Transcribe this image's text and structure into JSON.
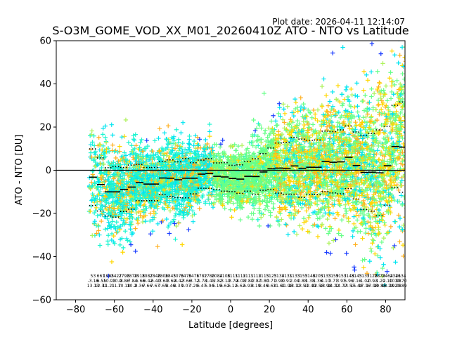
{
  "chart_data": {
    "type": "scatter",
    "title": "S-O3M_GOME_VOD_XX_M01_20260410Z ATO - NTO vs Latitude",
    "plot_date": "Plot date: 2026-04-11 12:14:07",
    "xlabel": "Latitude [degrees]",
    "ylabel": "ATO - NTO [DU]",
    "xlim": [
      -90,
      90
    ],
    "ylim": [
      -60,
      60
    ],
    "xticks": [
      -80,
      -60,
      -40,
      -20,
      0,
      20,
      40,
      60,
      80
    ],
    "yticks": [
      -60,
      -40,
      -20,
      0,
      20,
      40,
      60
    ],
    "xtick_labels": [
      "−80",
      "−60",
      "−40",
      "−20",
      "0",
      "20",
      "40",
      "60",
      "80"
    ],
    "ytick_labels": [
      "−60",
      "−40",
      "−20",
      "0",
      "20",
      "40",
      "60"
    ],
    "grid": false,
    "zero_line": 0,
    "colors": {
      "cyan": "#00e5f0",
      "aqua": "#1cf5d0",
      "green": "#66ff88",
      "lime": "#aef25c",
      "yellow": "#ffd700",
      "orange": "#ffb020",
      "blue": "#1a3cff"
    },
    "bins": [
      {
        "lat": -71,
        "mean": -3.2,
        "sd": 13.1,
        "n": "53",
        "mean_label": "-3.16",
        "sd_label": "13.13"
      },
      {
        "lat": -67,
        "mean": -6.6,
        "sd": 12.3,
        "n": "661",
        "mean_label": "-6.55",
        "sd_label": "12.31"
      },
      {
        "lat": -63,
        "mean": -10.0,
        "sd": 11.2,
        "n": "1985",
        "mean_label": "-10.03",
        "sd_label": "11.21"
      },
      {
        "lat": -59,
        "mean": -10.0,
        "sd": 11.7,
        "n": "2427",
        "mean_label": "-10.0",
        "sd_label": "11.7"
      },
      {
        "lat": -55,
        "mean": -8.9,
        "sd": 10.2,
        "n": "2795",
        "mean_label": "-8.86",
        "sd_label": "10.18"
      },
      {
        "lat": -51,
        "mean": -7.8,
        "sd": 10.2,
        "n": "2878",
        "mean_label": "-7.84",
        "sd_label": "10.2"
      },
      {
        "lat": -47,
        "mean": -5.7,
        "sd": 8.4,
        "n": "2918",
        "mean_label": "-5.66",
        "sd_label": "8.36"
      },
      {
        "lat": -43,
        "mean": -6.4,
        "sd": 7.7,
        "n": "3087",
        "mean_label": "-6.42",
        "sd_label": "7.66"
      },
      {
        "lat": -39,
        "mean": -6.4,
        "sd": 7.7,
        "n": "2848",
        "mean_label": "-6.40",
        "sd_label": "7.67"
      },
      {
        "lat": -35,
        "mean": -3.6,
        "sd": 7.7,
        "n": "2806",
        "mean_label": "-3.60",
        "sd_label": "7.65"
      },
      {
        "lat": -31,
        "mean": -3.7,
        "sd": 8.5,
        "n": "2845",
        "mean_label": "-3.69",
        "sd_label": "8.46"
      },
      {
        "lat": -27,
        "mean": -4.4,
        "sd": 8.3,
        "n": "3076",
        "mean_label": "-4.42",
        "sd_label": "8.33"
      },
      {
        "lat": -23,
        "mean": -3.7,
        "sd": 9.1,
        "n": "3476",
        "mean_label": "-3.66",
        "sd_label": "9.07"
      },
      {
        "lat": -19,
        "mean": -3.7,
        "sd": 7.2,
        "n": "3476",
        "mean_label": "-3.72",
        "sd_label": "7.20"
      },
      {
        "lat": -15,
        "mean": -1.8,
        "sd": 6.5,
        "n": "1782",
        "mean_label": "-1.78",
        "sd_label": "6.47"
      },
      {
        "lat": -11,
        "mean": -1.5,
        "sd": 6.9,
        "n": "1780",
        "mean_label": "-1.45",
        "sd_label": "6.94"
      },
      {
        "lat": -7,
        "mean": -2.8,
        "sd": 6.2,
        "n": "2084",
        "mean_label": "-2.82",
        "sd_label": "6.19"
      },
      {
        "lat": -3,
        "mean": -3.1,
        "sd": 6.6,
        "n": "2108",
        "mean_label": "-3.10",
        "sd_label": "6.62"
      },
      {
        "lat": 1,
        "mean": -3.8,
        "sd": 6.1,
        "n": "3111",
        "mean_label": "-3.79",
        "sd_label": "6.12"
      },
      {
        "lat": 5,
        "mean": -4.1,
        "sd": 6.6,
        "n": "3112",
        "mean_label": "-4.08",
        "sd_label": "6.62"
      },
      {
        "lat": 9,
        "mean": -2.8,
        "sd": 6.9,
        "n": "3111",
        "mean_label": "-2.80",
        "sd_label": "6.93"
      },
      {
        "lat": 13,
        "mean": -2.9,
        "sd": 8.2,
        "n": "3112",
        "mean_label": "-2.87",
        "sd_label": "8.19"
      },
      {
        "lat": 17,
        "mean": -0.8,
        "sd": 8.5,
        "n": "3115",
        "mean_label": "-0.80",
        "sd_label": "8.46"
      },
      {
        "lat": 21,
        "mean": 0.7,
        "sd": 9.6,
        "n": "3125",
        "mean_label": "0.71",
        "sd_label": "9.63"
      },
      {
        "lat": 25,
        "mean": 1.0,
        "sd": 11.6,
        "n": "3134",
        "mean_label": "0.98",
        "sd_label": "11.61"
      },
      {
        "lat": 29,
        "mean": 0.9,
        "sd": 12.0,
        "n": "3131",
        "mean_label": "0.91",
        "sd_label": "11.98"
      },
      {
        "lat": 33,
        "mean": 2.0,
        "sd": 13.1,
        "n": "3133",
        "mean_label": "2.04",
        "sd_label": "13.12"
      },
      {
        "lat": 37,
        "mean": 0.9,
        "sd": 13.5,
        "n": "3155",
        "mean_label": "0.88",
        "sd_label": "13.53"
      },
      {
        "lat": 41,
        "mean": 1.4,
        "sd": 12.5,
        "n": "3146",
        "mean_label": "1.38",
        "sd_label": "12.49"
      },
      {
        "lat": 45,
        "mean": 1.4,
        "sd": 12.6,
        "n": "3205",
        "mean_label": "1.36",
        "sd_label": "12.58"
      },
      {
        "lat": 49,
        "mean": 4.1,
        "sd": 14.0,
        "n": "3133",
        "mean_label": "4.10",
        "sd_label": "13.98"
      },
      {
        "lat": 53,
        "mean": 3.7,
        "sd": 14.2,
        "n": "3159",
        "mean_label": "3.71",
        "sd_label": "14.22"
      },
      {
        "lat": 57,
        "mean": 3.9,
        "sd": 14.8,
        "n": "3153",
        "mean_label": "3.93",
        "sd_label": "14.77"
      },
      {
        "lat": 61,
        "mean": 6.0,
        "sd": 14.5,
        "n": "3148",
        "mean_label": "5.96",
        "sd_label": "14.53"
      },
      {
        "lat": 65,
        "mean": 2.2,
        "sd": 15.5,
        "n": "3145",
        "mean_label": "2.16",
        "sd_label": "15.48"
      },
      {
        "lat": 69,
        "mean": -1.0,
        "sd": 17.2,
        "n": "3137",
        "mean_label": "-1.02",
        "sd_label": "17.16"
      },
      {
        "lat": 73,
        "mean": -0.9,
        "sd": 18.0,
        "n": "3128",
        "mean_label": "-0.93",
        "sd_label": "17.98"
      },
      {
        "lat": 77,
        "mean": -1.2,
        "sd": 19.9,
        "n": "2878",
        "mean_label": "-1.20",
        "sd_label": "19.88"
      },
      {
        "lat": 81,
        "mean": 2.1,
        "sd": 18.3,
        "n": "2464",
        "mean_label": "2.10",
        "sd_label": "18.28"
      },
      {
        "lat": 85,
        "mean": 11.0,
        "sd": 19.1,
        "n": "2346",
        "mean_label": "10.98",
        "sd_label": "19.08"
      },
      {
        "lat": 89,
        "mean": 10.7,
        "sd": 20.9,
        "n": "2134",
        "mean_label": "10.70",
        "sd_label": "20.89"
      }
    ]
  }
}
